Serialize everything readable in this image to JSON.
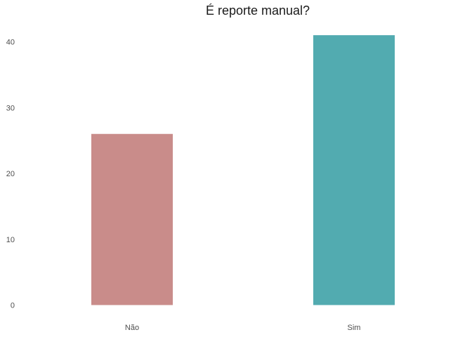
{
  "chart_data": {
    "type": "bar",
    "title": "É reporte manual?",
    "xlabel": "",
    "ylabel": "",
    "categories": [
      "Não",
      "Sim"
    ],
    "values": [
      26,
      41
    ],
    "colors": [
      "#c98c8a",
      "#52abb0"
    ],
    "ylim": [
      0,
      42
    ],
    "yticks": [
      0,
      10,
      20,
      30,
      40
    ],
    "grid": false,
    "legend": "none"
  }
}
